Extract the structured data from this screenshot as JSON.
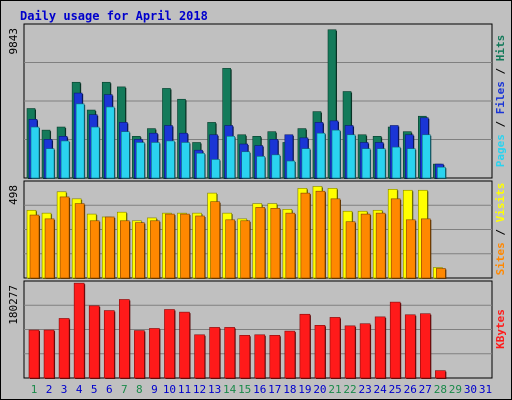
{
  "title": "Daily usage for April 2018",
  "colors": {
    "hits": "#137a5a",
    "files": "#1a35d6",
    "pages": "#2ad3f0",
    "visits": "#ffff00",
    "sites": "#ff8800",
    "kbytes": "#ff1a1a",
    "weekend_day": "#1a8a4a",
    "weekday": "#0000cc",
    "title": "#0000cc"
  },
  "chart_data": [
    {
      "type": "bar",
      "name": "hits-files-pages",
      "ymax_label": "9843",
      "ymax": 9843,
      "legend": [
        "Pages",
        "Files",
        "Hits"
      ],
      "categories": [
        "1",
        "2",
        "3",
        "4",
        "5",
        "6",
        "7",
        "8",
        "9",
        "10",
        "11",
        "12",
        "13",
        "14",
        "15",
        "16",
        "17",
        "18",
        "19",
        "20",
        "21",
        "22",
        "23",
        "24",
        "25",
        "26",
        "27",
        "28",
        "29",
        "30",
        "31"
      ],
      "weekend_days": [
        "1",
        "7",
        "8",
        "14",
        "15",
        "21",
        "22",
        "28",
        "29"
      ],
      "series": [
        {
          "name": "Hits",
          "values": [
            4500,
            3100,
            3300,
            6200,
            4400,
            6200,
            5900,
            2700,
            3200,
            5800,
            5100,
            2300,
            3600,
            7100,
            2800,
            2700,
            3000,
            2300,
            3200,
            4300,
            9600,
            5600,
            2800,
            2700,
            3300,
            3000,
            4000,
            900,
            null,
            null,
            null
          ]
        },
        {
          "name": "Files",
          "values": [
            3800,
            2500,
            2700,
            5500,
            4100,
            5400,
            3600,
            2500,
            2900,
            3400,
            2900,
            1800,
            2800,
            3400,
            2200,
            2100,
            2500,
            2800,
            2600,
            3600,
            3700,
            3400,
            2300,
            2300,
            3400,
            2800,
            3900,
            900,
            null,
            null,
            null
          ]
        },
        {
          "name": "Pages",
          "values": [
            3300,
            1900,
            2400,
            4800,
            3300,
            4600,
            3000,
            2300,
            2300,
            2400,
            2300,
            1600,
            1200,
            2700,
            1700,
            1400,
            1500,
            1100,
            1900,
            2900,
            3100,
            2800,
            1900,
            1900,
            2000,
            1900,
            2800,
            700,
            null,
            null,
            null
          ]
        }
      ]
    },
    {
      "type": "bar",
      "name": "visits-sites",
      "ymax_label": "498",
      "ymax": 498,
      "legend": [
        "Sites",
        "Visits"
      ],
      "categories": [
        "1",
        "2",
        "3",
        "4",
        "5",
        "6",
        "7",
        "8",
        "9",
        "10",
        "11",
        "12",
        "13",
        "14",
        "15",
        "16",
        "17",
        "18",
        "19",
        "20",
        "21",
        "22",
        "23",
        "24",
        "25",
        "26",
        "27",
        "28",
        "29",
        "30",
        "31"
      ],
      "series": [
        {
          "name": "Visits",
          "values": [
            355,
            340,
            452,
            415,
            335,
            320,
            345,
            300,
            315,
            340,
            340,
            340,
            445,
            340,
            310,
            390,
            390,
            360,
            470,
            480,
            470,
            350,
            350,
            355,
            465,
            460,
            460,
            55,
            null,
            null,
            null
          ]
        },
        {
          "name": "Sites",
          "values": [
            330,
            310,
            425,
            390,
            300,
            320,
            300,
            290,
            300,
            335,
            335,
            325,
            400,
            305,
            300,
            370,
            365,
            340,
            445,
            455,
            415,
            295,
            335,
            340,
            415,
            305,
            310,
            50,
            null,
            null,
            null
          ]
        }
      ]
    },
    {
      "type": "bar",
      "name": "kbytes",
      "ymax_label": "180277",
      "ymax": 180277,
      "legend": [
        "KBytes"
      ],
      "categories": [
        "1",
        "2",
        "3",
        "4",
        "5",
        "6",
        "7",
        "8",
        "9",
        "10",
        "11",
        "12",
        "13",
        "14",
        "15",
        "16",
        "17",
        "18",
        "19",
        "20",
        "21",
        "22",
        "23",
        "24",
        "25",
        "26",
        "27",
        "28",
        "29",
        "30",
        "31"
      ],
      "series": [
        {
          "name": "KBytes",
          "values": [
            91000,
            91000,
            113000,
            180000,
            137000,
            128000,
            149000,
            90000,
            94000,
            130000,
            125000,
            82000,
            96000,
            96000,
            81000,
            82000,
            81000,
            89000,
            121000,
            100000,
            115000,
            99000,
            103000,
            116000,
            144000,
            120000,
            122000,
            14000,
            null,
            null,
            null
          ]
        }
      ]
    }
  ]
}
